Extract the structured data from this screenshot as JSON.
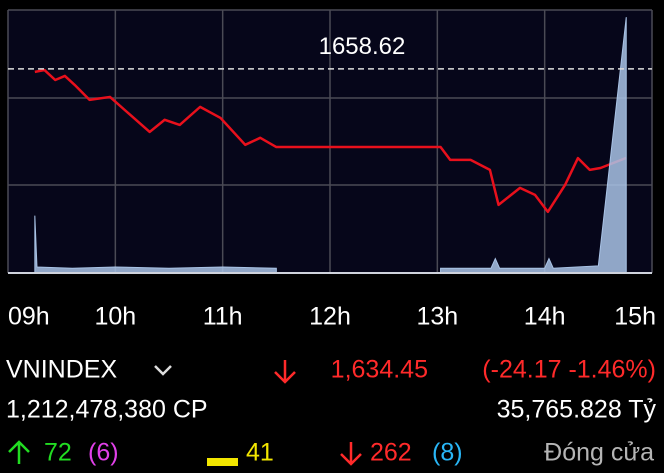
{
  "chart_data": {
    "type": "line",
    "xlim": [
      9,
      15
    ],
    "xticks": [
      {
        "value": 9,
        "label": "09h"
      },
      {
        "value": 10,
        "label": "10h"
      },
      {
        "value": 11,
        "label": "11h"
      },
      {
        "value": 12,
        "label": "12h"
      },
      {
        "value": 13,
        "label": "13h"
      },
      {
        "value": 14,
        "label": "14h"
      },
      {
        "value": 15,
        "label": "15h"
      }
    ],
    "ylim": [
      1603.2,
      1674.6
    ],
    "y2lim": [
      0,
      220
    ],
    "reference_line": 1658.62,
    "series": [
      {
        "color": "#e8101c",
        "x": [
          9.25,
          9.34,
          9.44,
          9.53,
          9.62,
          9.76,
          9.95,
          10.14,
          10.32,
          10.46,
          10.6,
          10.79,
          10.98,
          11.21,
          11.35,
          11.5,
          13.03,
          13.12,
          13.31,
          13.49,
          13.57,
          13.77,
          13.91,
          14.03,
          14.19,
          14.31,
          14.42,
          14.52,
          14.76
        ],
        "values": [
          1657.8,
          1658.3,
          1655.6,
          1656.7,
          1654.3,
          1650.2,
          1651.0,
          1646.1,
          1641.5,
          1644.8,
          1643.4,
          1648.3,
          1645.3,
          1638.0,
          1639.9,
          1637.4,
          1637.4,
          1633.9,
          1633.9,
          1631.2,
          1621.7,
          1626.3,
          1624.4,
          1619.8,
          1627.1,
          1634.4,
          1631.2,
          1631.7,
          1634.45
        ]
      },
      {
        "type": "area",
        "axis": "y2",
        "color": "#a9c3e6",
        "x": [
          9.25,
          9.27,
          9.6,
          10.0,
          10.5,
          11.0,
          11.5,
          12.2,
          13.03,
          13.5,
          13.54,
          13.58,
          14.0,
          14.04,
          14.08,
          14.5,
          14.76
        ],
        "values": [
          48,
          5,
          4,
          5,
          4,
          5,
          4,
          null,
          4,
          4,
          12,
          4,
          4,
          12,
          4,
          6,
          214
        ]
      }
    ]
  },
  "summary": {
    "index": "VNINDEX",
    "price": "1,634.45",
    "change": "(-24.17 -1.46%)",
    "volume": "1,212,478,380 CP",
    "value": "35,765.828 Tỷ",
    "advances": "72",
    "ceiling": "(6)",
    "unchanged": "41",
    "declines": "262",
    "floor": "(8)",
    "status": "Đóng cửa"
  }
}
